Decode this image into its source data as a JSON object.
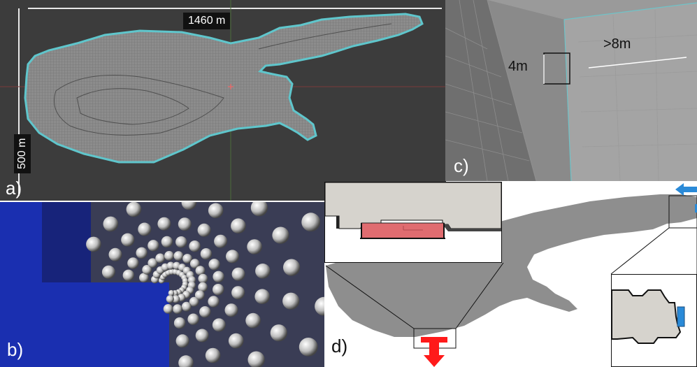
{
  "panels": {
    "a": {
      "label": "a)",
      "width_label": "1460 m",
      "height_label": "500 m"
    },
    "b": {
      "label": "b)"
    },
    "c": {
      "label": "c)",
      "cell_label": "4m",
      "wall_label": ">8m"
    },
    "d": {
      "label": "d)"
    }
  },
  "colors": {
    "viewport_bg": "#3c3c3c",
    "mesh_fill": "#8a8a8a",
    "mesh_outline": "#5fc6cc",
    "domain_gray": "#8e8e8e",
    "inlet_blue": "#2a8ad8",
    "outlet_red": "#ff1a1a",
    "boundary_fill": "#e06c70",
    "particle_blue": "#1a2fb0"
  },
  "icons": [
    "inflow-arrow-icon",
    "outflow-arrow-icon"
  ]
}
